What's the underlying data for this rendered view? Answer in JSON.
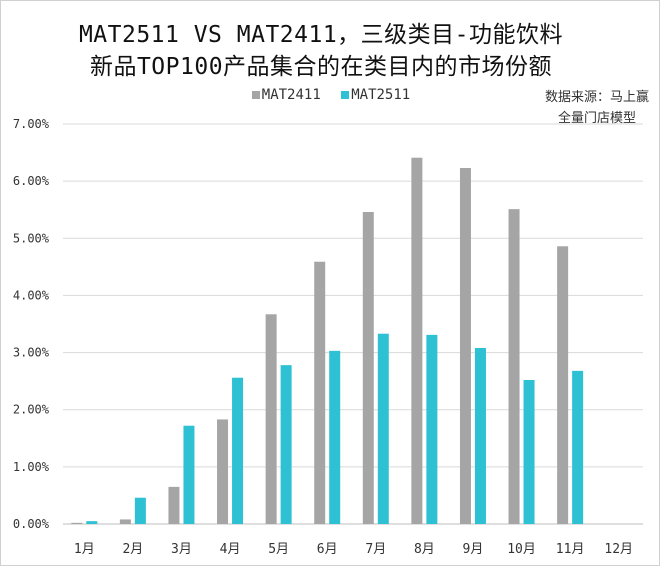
{
  "chart_data": {
    "type": "bar",
    "title": "MAT2511 VS MAT2411，三级类目-功能饮料",
    "subtitle": "新品TOP100产品集合的在类目内的市场份额",
    "source_line1": "数据来源：马上赢",
    "source_line2": "全量门店模型",
    "categories": [
      "1月",
      "2月",
      "3月",
      "4月",
      "5月",
      "6月",
      "7月",
      "8月",
      "9月",
      "10月",
      "11月",
      "12月"
    ],
    "series": [
      {
        "name": "MAT2411",
        "color": "#a5a5a5",
        "values": [
          0.02,
          0.08,
          0.65,
          1.83,
          3.67,
          4.59,
          5.46,
          6.41,
          6.23,
          5.51,
          4.86,
          null
        ]
      },
      {
        "name": "MAT2511",
        "color": "#2ec1d4",
        "values": [
          0.05,
          0.46,
          1.72,
          2.56,
          2.78,
          3.03,
          3.33,
          3.31,
          3.08,
          2.52,
          2.68,
          null
        ]
      }
    ],
    "ylim": [
      0,
      7
    ],
    "yticks": [
      "0.00%",
      "1.00%",
      "2.00%",
      "3.00%",
      "4.00%",
      "5.00%",
      "6.00%",
      "7.00%"
    ],
    "grid": true,
    "legend_position": "top"
  }
}
